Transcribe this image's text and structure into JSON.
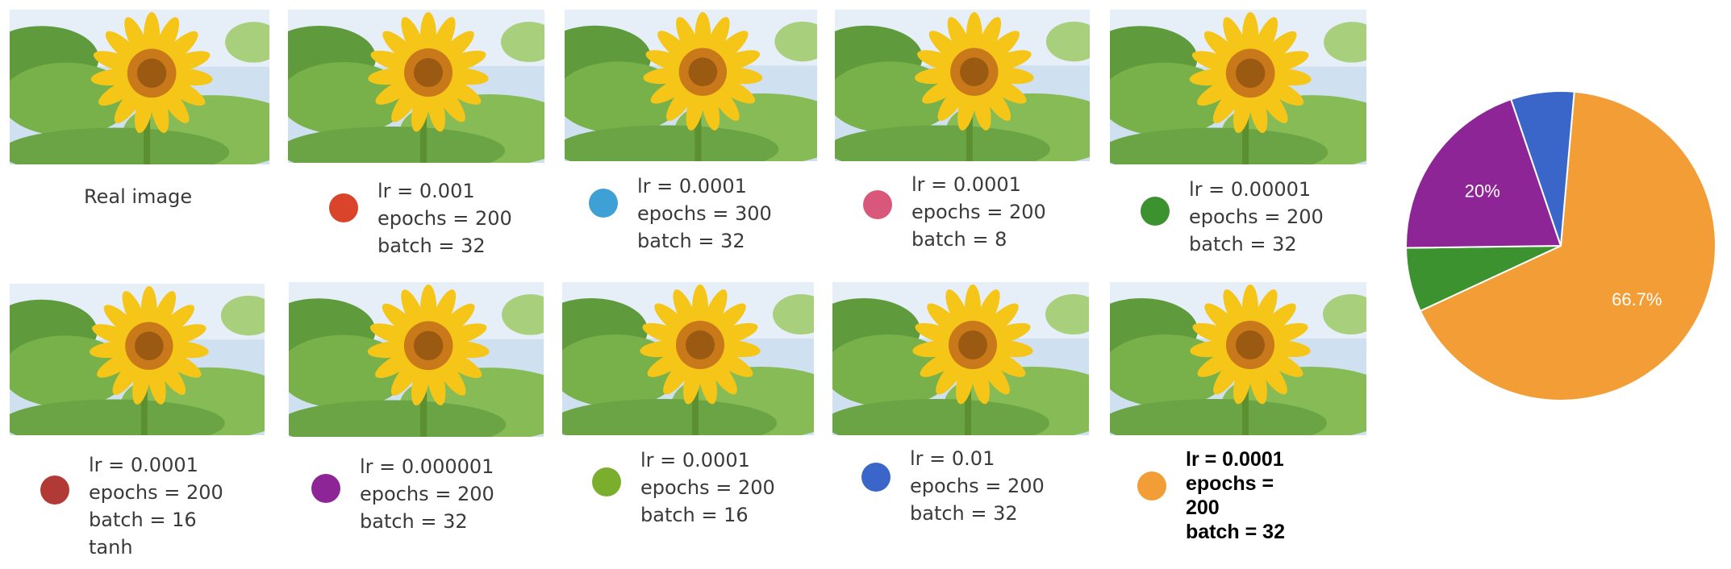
{
  "real_image": {
    "label": "Real image",
    "image": "sunflower-photo"
  },
  "configs": [
    {
      "lr": "lr = 0.001",
      "epochs": "epochs = 200",
      "batch": "batch = 32",
      "extra": "",
      "color": "#d9442b",
      "image": "sunflower-photo"
    },
    {
      "lr": "lr = 0.0001",
      "epochs": "epochs = 300",
      "batch": "batch = 32",
      "extra": "",
      "color": "#3ea0d4",
      "image": "sunflower-photo"
    },
    {
      "lr": "lr = 0.0001",
      "epochs": "epochs = 200",
      "batch": "batch = 8",
      "extra": "",
      "color": "#d9577a",
      "image": "sunflower-photo"
    },
    {
      "lr": "lr = 0.00001",
      "epochs": "epochs = 200",
      "batch": "batch = 32",
      "extra": "",
      "color": "#3c922f",
      "image": "sunflower-photo"
    },
    {
      "lr": "lr = 0.0001",
      "epochs": "epochs = 200",
      "batch": "batch = 16",
      "extra": "tanh",
      "color": "#b23a36",
      "image": "sunflower-photo"
    },
    {
      "lr": "lr = 0.000001",
      "epochs": "epochs = 200",
      "batch": "batch = 32",
      "extra": "",
      "color": "#8e2596",
      "image": "sunflower-photo"
    },
    {
      "lr": "lr = 0.0001",
      "epochs": "epochs = 200",
      "batch": "batch = 16",
      "extra": "",
      "color": "#7cae2e",
      "image": "sunflower-photo"
    },
    {
      "lr": "lr = 0.01",
      "epochs": "epochs = 200",
      "batch": "batch = 32",
      "extra": "",
      "color": "#3b66c9",
      "image": "sunflower-photo"
    },
    {
      "lr": "lr = 0.0001",
      "epochs_a": "epochs =",
      "epochs_b": "200",
      "batch": "batch = 32",
      "color": "#f29d35",
      "image": "sunflower-photo"
    }
  ],
  "chart_data": {
    "type": "pie",
    "title": "",
    "slices": [
      {
        "color": "#f29d35",
        "value": 66.7,
        "label": "66.7%"
      },
      {
        "color": "#3c922f",
        "value": 6.7,
        "label": ""
      },
      {
        "color": "#8e2596",
        "value": 20.0,
        "label": "20%"
      },
      {
        "color": "#3b66c9",
        "value": 6.6,
        "label": ""
      }
    ],
    "start_angle_deg": 275,
    "legend": "none"
  }
}
